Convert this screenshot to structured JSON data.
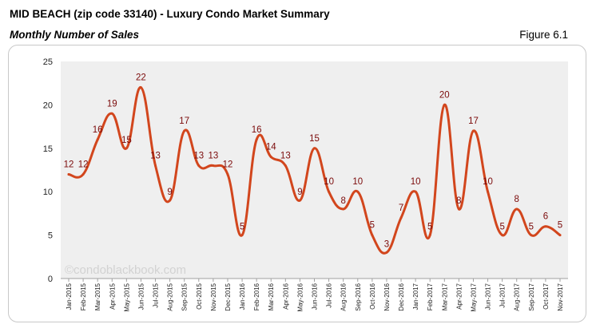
{
  "header": {
    "title": "MID BEACH (zip code 33140) - Luxury Condo Market Summary",
    "subtitle": "Monthly Number of Sales",
    "figure": "Figure 6.1"
  },
  "colors": {
    "line": "#d2461d",
    "plot_background": "#efefef",
    "data_label": "#7b0a0a"
  },
  "chart_data": {
    "type": "line",
    "title": "Monthly Number of Sales",
    "xlabel": "",
    "ylabel": "",
    "ylim": [
      0,
      25
    ],
    "yticks": [
      0,
      5,
      10,
      15,
      20,
      25
    ],
    "grid": false,
    "categories": [
      "Jan-2015",
      "Feb-2015",
      "Mar-2015",
      "Apr-2015",
      "May-2015",
      "Jun-2015",
      "Jul-2015",
      "Aug-2015",
      "Sep-2015",
      "Oct-2015",
      "Nov-2015",
      "Dec-2015",
      "Jan-2016",
      "Feb-2016",
      "Mar-2016",
      "Apr-2016",
      "May-2016",
      "Jun-2016",
      "Jul-2016",
      "Aug-2016",
      "Sep-2016",
      "Oct-2016",
      "Nov-2016",
      "Dec-2016",
      "Jan-2017",
      "Feb-2017",
      "Mar-2017",
      "Apr-2017",
      "May-2017",
      "Jun-2017",
      "Jul-2017",
      "Aug-2017",
      "Sep-2017",
      "Oct-2017",
      "Nov-2017"
    ],
    "series": [
      {
        "name": "Number of Sales",
        "values": [
          12,
          12,
          16,
          19,
          15,
          22,
          13,
          9,
          17,
          13,
          13,
          12,
          5,
          16,
          14,
          13,
          9,
          15,
          10,
          8,
          10,
          5,
          3,
          7,
          10,
          5,
          20,
          8,
          17,
          10,
          5,
          8,
          5,
          6,
          5
        ]
      }
    ],
    "watermark": "©condoblackbook.com"
  }
}
